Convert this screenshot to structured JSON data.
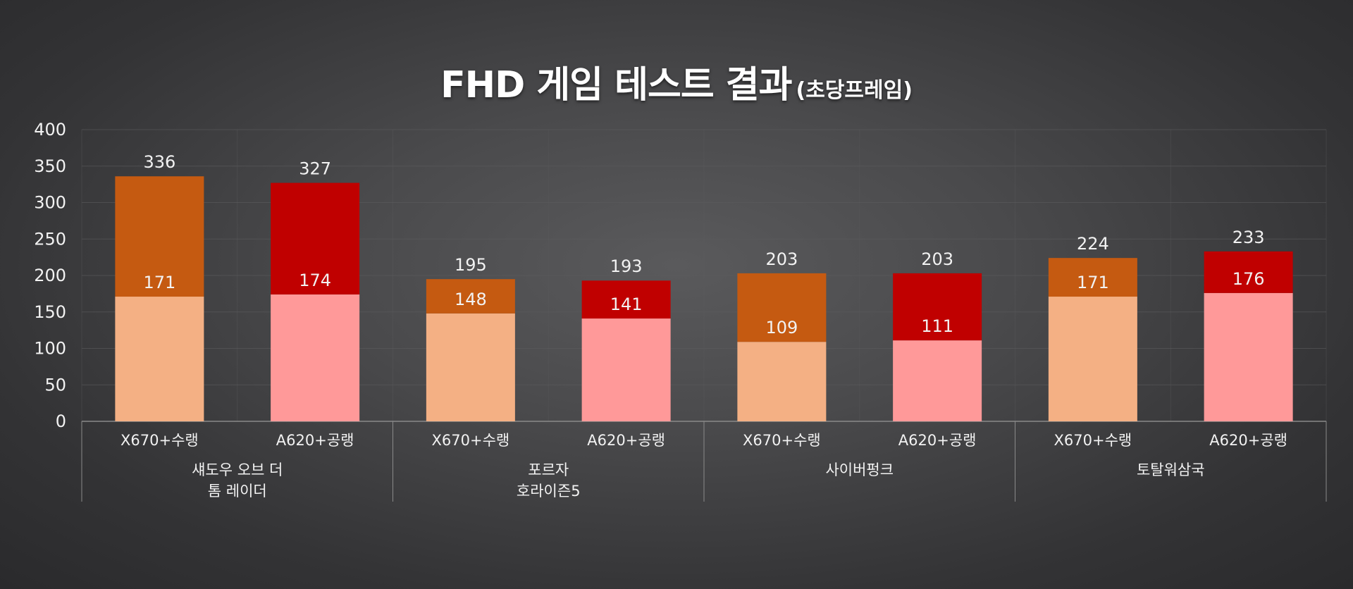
{
  "chart_data": {
    "type": "bar",
    "stacked": true,
    "title": "FHD 게임 테스트 결과",
    "subtitle": "(초당프레임)",
    "xlabel": "",
    "ylabel": "",
    "ylim": [
      0,
      400
    ],
    "yticks": [
      0,
      50,
      100,
      150,
      200,
      250,
      300,
      350,
      400
    ],
    "grid": true,
    "legend": "none",
    "groups": [
      {
        "label": "섀도우 오브 더\n톰 레이더",
        "categories": [
          "X670+수랭",
          "A620+공랭"
        ]
      },
      {
        "label": "포르자\n호라이즌5",
        "categories": [
          "X670+수랭",
          "A620+공랭"
        ]
      },
      {
        "label": "사이버펑크",
        "categories": [
          "X670+수랭",
          "A620+공랭"
        ]
      },
      {
        "label": "토탈워삼국",
        "categories": [
          "X670+수랭",
          "A620+공랭"
        ]
      }
    ],
    "bars": [
      {
        "group": 0,
        "category": "X670+수랭",
        "lower": 171,
        "total": 336
      },
      {
        "group": 0,
        "category": "A620+공랭",
        "lower": 174,
        "total": 327
      },
      {
        "group": 1,
        "category": "X670+수랭",
        "lower": 148,
        "total": 195
      },
      {
        "group": 1,
        "category": "A620+공랭",
        "lower": 141,
        "total": 193
      },
      {
        "group": 2,
        "category": "X670+수랭",
        "lower": 109,
        "total": 203
      },
      {
        "group": 2,
        "category": "A620+공랭",
        "lower": 111,
        "total": 203
      },
      {
        "group": 3,
        "category": "X670+수랭",
        "lower": 171,
        "total": 224
      },
      {
        "group": 3,
        "category": "A620+공랭",
        "lower": 176,
        "total": 233
      }
    ],
    "colors": {
      "X670+수랭": {
        "lower": "#f4b084",
        "upper": "#c55a11"
      },
      "A620+공랭": {
        "lower": "#ff9999",
        "upper": "#c00000"
      },
      "text": "#f2f2f2",
      "grid": "#5c5c5e",
      "axis": "#8a8a8a"
    }
  }
}
